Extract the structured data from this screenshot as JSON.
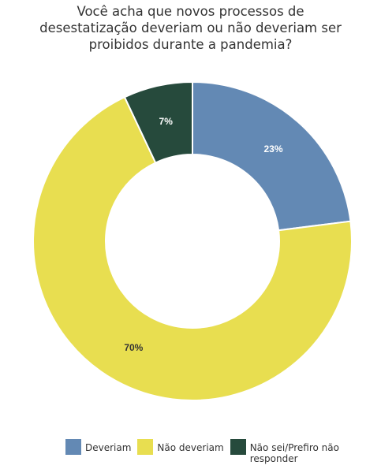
{
  "chart_data": {
    "type": "donut",
    "title": "Você acha que novos processos de desestatização deveriam ou não deveriam ser proibidos durante a pandemia?",
    "categories": [
      "Deveriam",
      "Não deveriam",
      "Não sei/Prefiro não responder"
    ],
    "values": [
      23,
      70,
      7
    ],
    "value_labels": [
      "23%",
      "70%",
      "7%"
    ],
    "colors": [
      "#6389b4",
      "#e8de50",
      "#264a3c"
    ]
  }
}
